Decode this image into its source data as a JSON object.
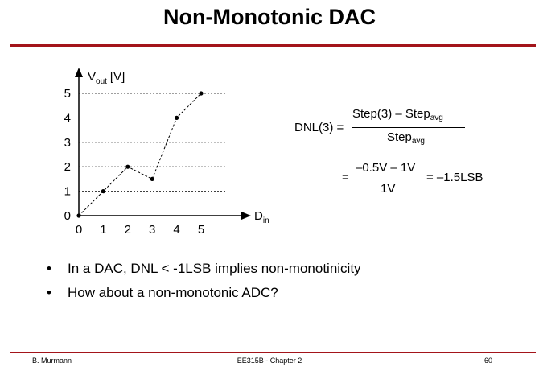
{
  "slide": {
    "title": "Non-Monotonic DAC",
    "bullets": [
      "In a DAC, DNL < -1LSB implies non-monotinicity",
      "How about a non-monotonic ADC?"
    ]
  },
  "equation": {
    "lhs": "DNL(3) =",
    "frac1_num_main": "Step(3) – Step",
    "frac1_num_sub": "avg",
    "frac1_den_main": "Step",
    "frac1_den_sub": "avg",
    "eq2_lead": "=",
    "frac2_num": "–0.5V – 1V",
    "frac2_den": "1V",
    "eq2_result": "= –1.5LSB"
  },
  "footer": {
    "author": "B. Murmann",
    "course": "EE315B - Chapter 2",
    "page": "60"
  },
  "chart_data": {
    "type": "line",
    "x": [
      0,
      1,
      2,
      3,
      4,
      5
    ],
    "y": [
      0,
      1,
      2,
      1.5,
      4,
      5
    ],
    "x_ticks": [
      "0",
      "1",
      "2",
      "3",
      "4",
      "5"
    ],
    "y_ticks": [
      "0",
      "1",
      "2",
      "3",
      "4",
      "5"
    ],
    "xlabel_main": "D",
    "xlabel_sub": "in",
    "ylabel_main": "V",
    "ylabel_sub": "out",
    "ylabel_unit": "[V]",
    "xlim": [
      0,
      5
    ],
    "ylim": [
      0,
      5
    ],
    "grid": "horizontal-dashed",
    "line_style": "dashed",
    "marker": "dot"
  }
}
